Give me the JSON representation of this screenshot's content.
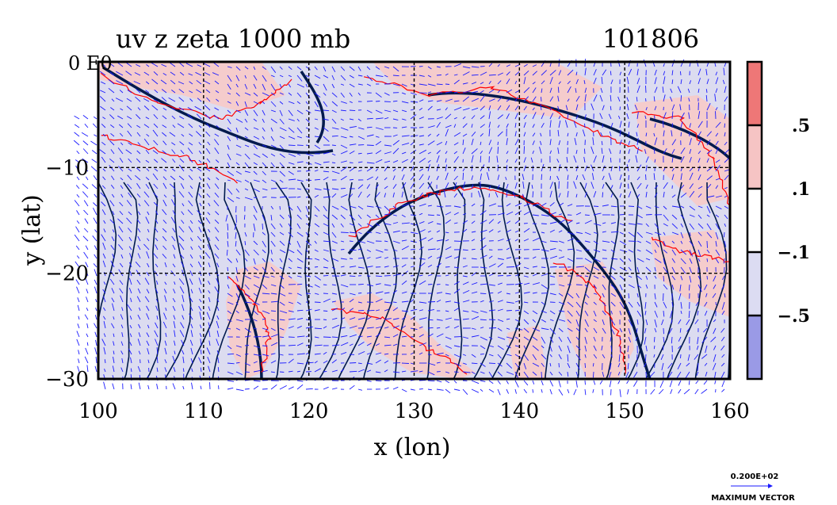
{
  "plot": {
    "title": "uv z zeta 1000 mb",
    "date_code": "101806",
    "xlabel": "x (lon)",
    "ylabel": "y (lat)",
    "corner_label": "0 E0",
    "xlim": [
      100,
      160
    ],
    "ylim": [
      -30,
      0
    ],
    "x_ticks": [
      {
        "value": 100,
        "label": "100"
      },
      {
        "value": 110,
        "label": "110"
      },
      {
        "value": 120,
        "label": "120"
      },
      {
        "value": 130,
        "label": "130"
      },
      {
        "value": 140,
        "label": "140"
      },
      {
        "value": 150,
        "label": "150"
      },
      {
        "value": 160,
        "label": "160"
      }
    ],
    "y_ticks": [
      {
        "value": -10,
        "label": "−10"
      },
      {
        "value": -20,
        "label": "−20"
      },
      {
        "value": -30,
        "label": "−30"
      }
    ],
    "grid": true,
    "colors": {
      "vectors": "#1a1aff",
      "height_contours": "#001a4d",
      "zeta_contours": "#ff0000",
      "frame": "#000000",
      "positive_fill": "#f5cccc",
      "negative_fill": "#dcdcf0"
    }
  },
  "colorbar": {
    "bands": [
      {
        "color": "#ee7777"
      },
      {
        "color": "#f6c4c4"
      },
      {
        "color": "#ffffff"
      },
      {
        "color": "#dcdcf2"
      },
      {
        "color": "#9a9ae6"
      }
    ],
    "labels": [
      ".5",
      ".1",
      "−.1",
      "−.5"
    ]
  },
  "legend": {
    "value": "0.200E+02",
    "caption": "MAXIMUM VECTOR"
  }
}
